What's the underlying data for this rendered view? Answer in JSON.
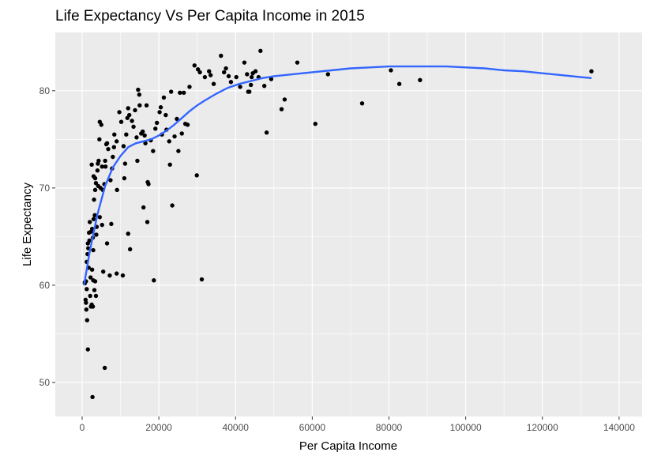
{
  "chart_data": {
    "type": "scatter",
    "title": "Life Expectancy Vs Per Capita Income in 2015",
    "xlabel": "Per Capita Income",
    "ylabel": "Life Expectancy",
    "xlim": [
      -7000,
      146000
    ],
    "ylim": [
      46.5,
      86.0
    ],
    "xticks": [
      0,
      20000,
      40000,
      60000,
      80000,
      100000,
      120000,
      140000
    ],
    "yticks": [
      50,
      60,
      70,
      80
    ],
    "grid": true,
    "background": "#EBEBEB",
    "point_color": "#000000",
    "smooth_color": "#3366FF",
    "points": [
      [
        700,
        60.2
      ],
      [
        900,
        58.5
      ],
      [
        1000,
        58.2
      ],
      [
        1200,
        59.6
      ],
      [
        1300,
        56.4
      ],
      [
        1500,
        53.4
      ],
      [
        1200,
        62.4
      ],
      [
        1400,
        63.2
      ],
      [
        1500,
        64.3
      ],
      [
        1800,
        65.4
      ],
      [
        1600,
        63.8
      ],
      [
        1900,
        64.6
      ],
      [
        2000,
        66.5
      ],
      [
        1700,
        61.8
      ],
      [
        2200,
        60.8
      ],
      [
        2100,
        58.9
      ],
      [
        2300,
        57.8
      ],
      [
        2500,
        58.0
      ],
      [
        2800,
        57.8
      ],
      [
        2700,
        48.5
      ],
      [
        2600,
        61.6
      ],
      [
        2900,
        60.5
      ],
      [
        3200,
        59.5
      ],
      [
        3400,
        60.4
      ],
      [
        3600,
        58.9
      ],
      [
        2600,
        65.8
      ],
      [
        2800,
        64.9
      ],
      [
        3000,
        66.8
      ],
      [
        3300,
        67.2
      ],
      [
        3100,
        68.8
      ],
      [
        3400,
        69.8
      ],
      [
        3600,
        70.5
      ],
      [
        4000,
        71.8
      ],
      [
        4200,
        70.2
      ],
      [
        3700,
        65.2
      ],
      [
        2500,
        72.4
      ],
      [
        3000,
        71.2
      ],
      [
        3400,
        71.0
      ],
      [
        4100,
        72.5
      ],
      [
        4300,
        72.8
      ],
      [
        4500,
        75.0
      ],
      [
        4600,
        76.8
      ],
      [
        5000,
        76.5
      ],
      [
        5200,
        72.2
      ],
      [
        4800,
        70.0
      ],
      [
        5400,
        69.8
      ],
      [
        5800,
        70.4
      ],
      [
        6100,
        72.2
      ],
      [
        6300,
        74.5
      ],
      [
        6500,
        74.6
      ],
      [
        5900,
        51.5
      ],
      [
        6800,
        74.0
      ],
      [
        6000,
        72.8
      ],
      [
        5200,
        66.2
      ],
      [
        4600,
        67.0
      ],
      [
        5500,
        61.4
      ],
      [
        6500,
        64.3
      ],
      [
        7200,
        61.0
      ],
      [
        7400,
        70.8
      ],
      [
        7800,
        72.0
      ],
      [
        8000,
        73.2
      ],
      [
        8300,
        74.2
      ],
      [
        8400,
        75.5
      ],
      [
        7600,
        66.3
      ],
      [
        9100,
        69.8
      ],
      [
        9000,
        74.8
      ],
      [
        9700,
        77.8
      ],
      [
        10200,
        76.8
      ],
      [
        10600,
        61.0
      ],
      [
        11000,
        71.0
      ],
      [
        11200,
        72.5
      ],
      [
        11500,
        75.5
      ],
      [
        11800,
        77.2
      ],
      [
        12300,
        77.5
      ],
      [
        12000,
        78.2
      ],
      [
        13000,
        76.9
      ],
      [
        13400,
        76.3
      ],
      [
        13800,
        78.0
      ],
      [
        14200,
        75.2
      ],
      [
        14400,
        72.8
      ],
      [
        14600,
        80.1
      ],
      [
        14900,
        79.6
      ],
      [
        15000,
        78.5
      ],
      [
        15400,
        75.6
      ],
      [
        15800,
        75.8
      ],
      [
        16000,
        68.0
      ],
      [
        16300,
        75.4
      ],
      [
        16800,
        78.5
      ],
      [
        17100,
        70.6
      ],
      [
        17300,
        70.4
      ],
      [
        17000,
        66.5
      ],
      [
        16500,
        74.6
      ],
      [
        17900,
        74.9
      ],
      [
        18500,
        73.8
      ],
      [
        18700,
        60.5
      ],
      [
        19100,
        76.1
      ],
      [
        19500,
        76.7
      ],
      [
        20200,
        77.8
      ],
      [
        20500,
        78.3
      ],
      [
        20800,
        75.5
      ],
      [
        21300,
        79.3
      ],
      [
        21800,
        77.5
      ],
      [
        22000,
        76.0
      ],
      [
        22700,
        74.8
      ],
      [
        22900,
        72.4
      ],
      [
        23500,
        68.2
      ],
      [
        23200,
        79.9
      ],
      [
        24100,
        75.3
      ],
      [
        24700,
        77.1
      ],
      [
        25100,
        73.8
      ],
      [
        25500,
        79.8
      ],
      [
        26000,
        75.6
      ],
      [
        26500,
        79.8
      ],
      [
        26900,
        76.6
      ],
      [
        27500,
        76.5
      ],
      [
        28000,
        80.4
      ],
      [
        29300,
        82.6
      ],
      [
        29900,
        71.3
      ],
      [
        30200,
        82.2
      ],
      [
        30700,
        81.9
      ],
      [
        31200,
        60.6
      ],
      [
        32000,
        81.4
      ],
      [
        33100,
        82.0
      ],
      [
        33500,
        81.6
      ],
      [
        34300,
        80.7
      ],
      [
        36200,
        83.6
      ],
      [
        37000,
        81.9
      ],
      [
        37500,
        82.3
      ],
      [
        38200,
        81.5
      ],
      [
        38800,
        80.9
      ],
      [
        40200,
        81.4
      ],
      [
        41200,
        80.4
      ],
      [
        42300,
        82.9
      ],
      [
        43000,
        81.7
      ],
      [
        43300,
        79.9
      ],
      [
        43600,
        79.9
      ],
      [
        44000,
        80.6
      ],
      [
        44500,
        81.8
      ],
      [
        44200,
        81.4
      ],
      [
        45200,
        82.0
      ],
      [
        46000,
        81.4
      ],
      [
        46500,
        84.1
      ],
      [
        47500,
        80.5
      ],
      [
        48100,
        75.7
      ],
      [
        49300,
        81.2
      ],
      [
        52000,
        78.1
      ],
      [
        52800,
        79.1
      ],
      [
        56100,
        82.9
      ],
      [
        60800,
        76.6
      ],
      [
        64100,
        81.7
      ],
      [
        73000,
        78.7
      ],
      [
        80500,
        82.1
      ],
      [
        82700,
        80.7
      ],
      [
        88100,
        81.1
      ],
      [
        132800,
        82.0
      ],
      [
        700,
        60.3
      ],
      [
        1000,
        60.4
      ],
      [
        1100,
        57.5
      ],
      [
        2300,
        65.5
      ],
      [
        2900,
        63.6
      ],
      [
        3800,
        66.0
      ],
      [
        9000,
        61.2
      ],
      [
        10800,
        74.3
      ],
      [
        12500,
        63.7
      ],
      [
        12000,
        65.3
      ]
    ],
    "smooth_x": [
      500,
      2000,
      4000,
      6000,
      8000,
      10000,
      12000,
      14000,
      16000,
      18000,
      20000,
      22000,
      24000,
      26000,
      28000,
      30000,
      32000,
      35000,
      38000,
      41000,
      44000,
      47000,
      50000,
      55000,
      60000,
      65000,
      70000,
      75000,
      80000,
      85000,
      90000,
      95000,
      100000,
      105000,
      110000,
      115000,
      120000,
      125000,
      130000,
      132800
    ],
    "smooth_y": [
      60.0,
      63.5,
      67.3,
      70.2,
      72.1,
      73.3,
      74.2,
      74.6,
      74.8,
      75.0,
      75.4,
      75.9,
      76.5,
      77.2,
      77.9,
      78.5,
      79.0,
      79.7,
      80.3,
      80.7,
      81.0,
      81.3,
      81.5,
      81.7,
      81.9,
      82.1,
      82.3,
      82.4,
      82.5,
      82.5,
      82.5,
      82.5,
      82.4,
      82.3,
      82.1,
      82.0,
      81.8,
      81.6,
      81.4,
      81.3
    ]
  }
}
